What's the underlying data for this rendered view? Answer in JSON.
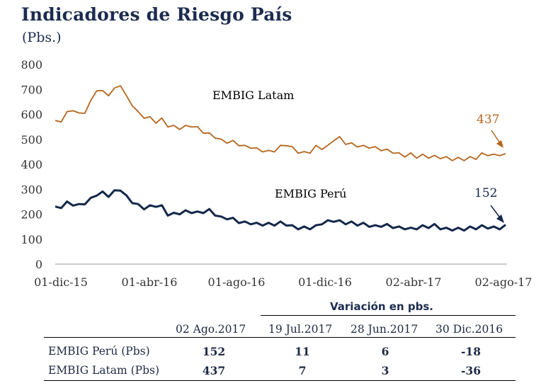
{
  "title": "Indicadores de Riesgo País",
  "unit": "(Pbs.)",
  "chart_data": {
    "type": "line",
    "yticks": [
      0,
      100,
      200,
      300,
      400,
      500,
      600,
      700,
      800
    ],
    "ylim": [
      0,
      800
    ],
    "xticks": [
      "01-dic-15",
      "01-abr-16",
      "01-ago-16",
      "01-dic-16",
      "02-abr-17",
      "02-ago-17"
    ],
    "series": [
      {
        "name": "EMBIG Latam",
        "color": "#b5651d",
        "end_value": "437",
        "values": [
          570,
          575,
          605,
          620,
          600,
          610,
          650,
          700,
          690,
          680,
          700,
          720,
          670,
          640,
          605,
          590,
          585,
          570,
          580,
          555,
          550,
          545,
          550,
          555,
          545,
          530,
          520,
          510,
          495,
          490,
          490,
          480,
          470,
          470,
          460,
          455,
          450,
          455,
          470,
          480,
          465,
          450,
          445,
          450,
          470,
          465,
          470,
          500,
          505,
          485,
          480,
          475,
          470,
          470,
          465,
          460,
          455,
          450,
          440,
          435,
          440,
          430,
          435,
          430,
          430,
          428,
          425,
          420,
          422,
          420,
          425,
          425,
          440,
          440,
          435,
          440,
          437
        ]
      },
      {
        "name": "EMBIG Perú",
        "color": "#14284b",
        "end_value": "152",
        "values": [
          225,
          230,
          245,
          240,
          235,
          245,
          260,
          280,
          285,
          275,
          290,
          300,
          270,
          250,
          235,
          225,
          230,
          235,
          230,
          200,
          200,
          205,
          210,
          210,
          205,
          210,
          215,
          200,
          185,
          185,
          180,
          170,
          165,
          165,
          160,
          160,
          160,
          160,
          165,
          160,
          150,
          145,
          145,
          145,
          150,
          165,
          170,
          175,
          170,
          165,
          165,
          160,
          160,
          155,
          150,
          155,
          155,
          150,
          145,
          145,
          140,
          145,
          150,
          150,
          155,
          145,
          140,
          140,
          140,
          140,
          145,
          145,
          150,
          148,
          145,
          145,
          152
        ]
      }
    ]
  },
  "table": {
    "header_group": "Variación en pbs.",
    "columns": [
      "02 Ago.2017",
      "19 Jul.2017",
      "28 Jun.2017",
      "30 Dic.2016"
    ],
    "rows": [
      {
        "label": "EMBIG Perú (Pbs)",
        "values": [
          "152",
          "11",
          "6",
          "-18"
        ]
      },
      {
        "label": "EMBIG Latam (Pbs)",
        "values": [
          "437",
          "7",
          "3",
          "-36"
        ]
      }
    ]
  }
}
